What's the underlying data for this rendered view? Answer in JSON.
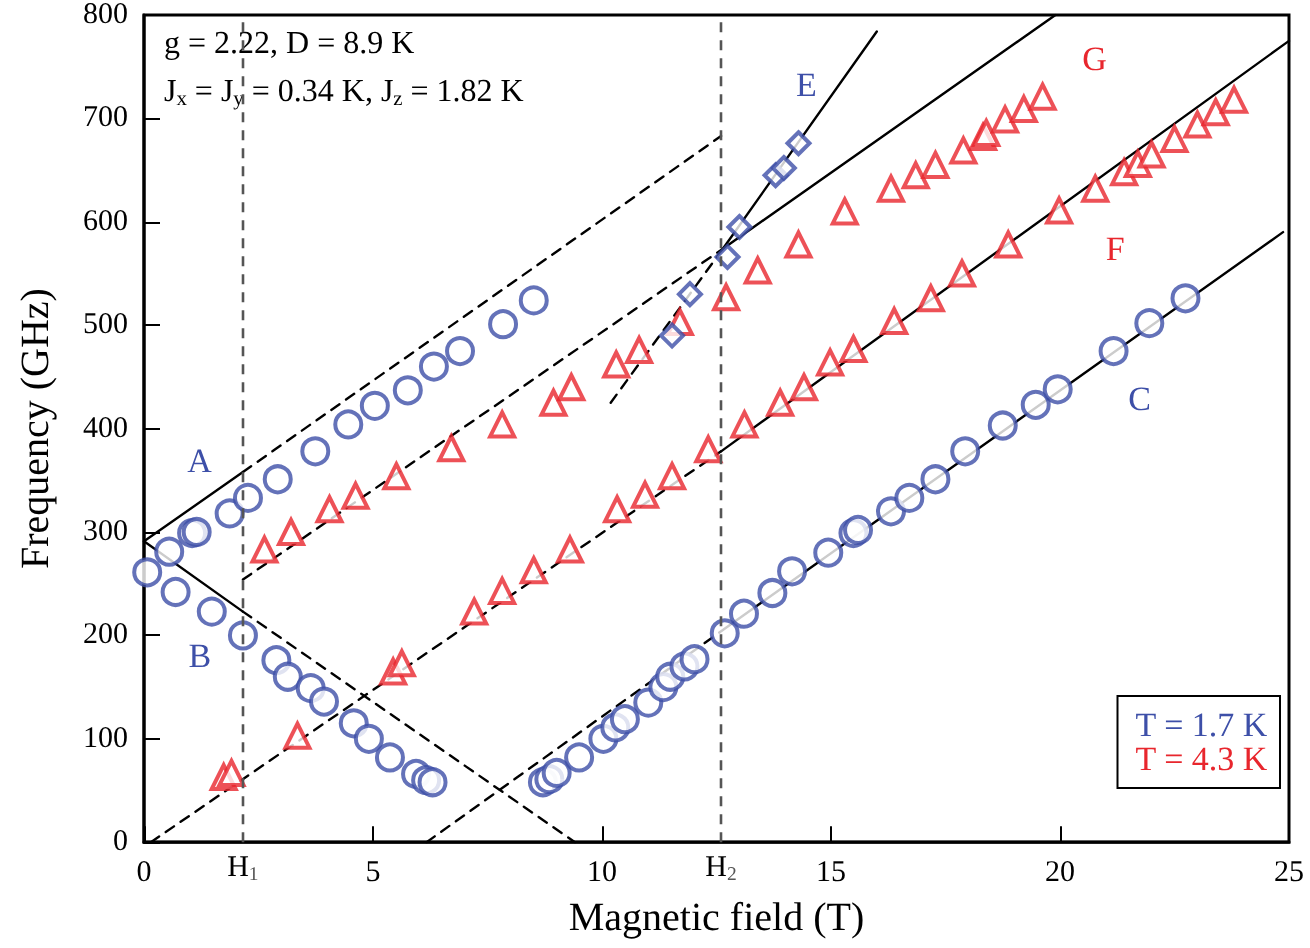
{
  "chart_data": {
    "type": "scatter",
    "xlabel": "Magnetic field (T)",
    "ylabel": "Frequency (GHz)",
    "xlim": [
      0,
      25
    ],
    "xticks": [
      0,
      5,
      10,
      15,
      20,
      25
    ],
    "ylim": [
      0,
      800
    ],
    "yticks": [
      0,
      100,
      200,
      300,
      400,
      500,
      600,
      700,
      800
    ],
    "grid": false,
    "legend": "bottom right",
    "series": [
      {
        "type": "line",
        "color": "#000000",
        "line_style": "solid",
        "marker": "none",
        "x": [
          0,
          2.16
        ],
        "values": [
          291,
          358
        ]
      },
      {
        "type": "line",
        "color": "#000000",
        "line_style": "dashed",
        "marker": "none",
        "x": [
          2.16,
          12.6
        ],
        "values": [
          358,
          683
        ]
      },
      {
        "type": "line",
        "color": "#000000",
        "line_style": "solid",
        "marker": "none",
        "x": [
          0,
          2.16
        ],
        "values": [
          291,
          223
        ]
      },
      {
        "type": "line",
        "color": "#000000",
        "line_style": "dashed",
        "marker": "none",
        "x": [
          2.16,
          9.41
        ],
        "values": [
          223,
          0
        ]
      },
      {
        "type": "line",
        "color": "#000000",
        "line_style": "dashed",
        "marker": "none",
        "x": [
          2.16,
          12.64
        ],
        "values": [
          254,
          574
        ]
      },
      {
        "type": "line",
        "color": "#000000",
        "line_style": "solid",
        "marker": "none",
        "x": [
          12.64,
          19.9
        ],
        "values": [
          574,
          800
        ]
      },
      {
        "type": "line",
        "color": "#000000",
        "line_style": "dashed",
        "marker": "none",
        "x": [
          10.19,
          12.64
        ],
        "values": [
          425,
          574
        ]
      },
      {
        "type": "line",
        "color": "#000000",
        "line_style": "solid",
        "marker": "none",
        "x": [
          12.64,
          16.0
        ],
        "values": [
          574,
          784
        ]
      },
      {
        "type": "line",
        "color": "#000000",
        "line_style": "dashed",
        "marker": "none",
        "x": [
          0.15,
          12.6
        ],
        "values": [
          0,
          378
        ]
      },
      {
        "type": "line",
        "color": "#000000",
        "line_style": "solid",
        "marker": "none",
        "x": [
          12.6,
          25
        ],
        "values": [
          378,
          775
        ]
      },
      {
        "type": "line",
        "color": "#000000",
        "line_style": "dashed",
        "marker": "none",
        "x": [
          6.17,
          12.57
        ],
        "values": [
          0,
          203
        ]
      },
      {
        "type": "line",
        "color": "#000000",
        "line_style": "solid",
        "marker": "none",
        "x": [
          12.57,
          24.87
        ],
        "values": [
          203,
          590
        ]
      },
      {
        "name": "T = 1.7 K",
        "color": "#3d4fa8",
        "marker": "circle",
        "x": [
          0.07,
          0.69,
          1.48,
          2.16,
          2.89,
          3.14,
          3.64,
          3.93,
          4.58,
          4.91,
          5.37,
          5.94,
          6.16,
          6.3,
          0.55,
          1.05,
          1.15,
          1.87,
          2.27,
          2.92,
          3.74,
          4.46,
          5.04,
          5.76,
          6.33,
          6.9,
          7.84,
          8.51,
          8.71,
          8.85,
          9.01,
          9.5,
          10.03,
          10.29,
          10.5,
          11.01,
          11.34,
          11.49,
          11.8,
          12.02,
          12.68,
          13.1,
          13.72,
          14.15,
          14.94,
          15.49,
          15.59,
          16.31,
          16.71,
          17.28,
          17.93,
          18.75,
          19.47,
          19.95,
          21.17,
          21.95,
          22.74
        ],
        "values": [
          261,
          242,
          223,
          200,
          176,
          160,
          149,
          136,
          115,
          100,
          82,
          66,
          60,
          58,
          281,
          299,
          300,
          318,
          333,
          351,
          378,
          404,
          422,
          437,
          460,
          475,
          501,
          524,
          58,
          61,
          67,
          82,
          100,
          111,
          119,
          135,
          150,
          160,
          170,
          177,
          202,
          221,
          241,
          262,
          280,
          299,
          302,
          320,
          333,
          351,
          378,
          403,
          423,
          438,
          475,
          502,
          526
        ]
      },
      {
        "name": "T = 4.3 K",
        "color": "#e8262d",
        "marker": "triangle",
        "x": [
          1.74,
          1.91,
          3.35,
          5.44,
          5.63,
          7.21,
          7.82,
          8.51,
          9.3,
          10.33,
          10.94,
          11.53,
          12.32,
          13.11,
          13.89,
          14.41,
          14.98,
          15.49,
          16.38,
          17.18,
          17.86,
          18.87,
          19.98,
          20.77,
          21.4,
          21.7,
          22.0,
          22.5,
          23.0,
          23.4,
          23.8,
          2.63,
          3.21,
          4.05,
          4.62,
          5.51,
          6.71,
          7.82,
          8.94,
          9.33,
          10.31,
          10.81,
          11.7,
          12.71,
          13.4,
          14.29,
          15.3,
          16.31,
          16.85,
          17.28,
          17.89,
          18.32,
          18.39,
          18.8,
          19.21,
          19.62
        ],
        "values": [
          63,
          67,
          103,
          165,
          173,
          223,
          243,
          263,
          283,
          322,
          336,
          354,
          380,
          404,
          425,
          440,
          464,
          477,
          504,
          526,
          550,
          578,
          611,
          632,
          648,
          656,
          665,
          680,
          694,
          706,
          718,
          283,
          300,
          322,
          335,
          354,
          381,
          404,
          425,
          440,
          462,
          476,
          503,
          527,
          553,
          578,
          610,
          632,
          645,
          655,
          669,
          682,
          686,
          699,
          709,
          721
        ]
      },
      {
        "color": "#3d4fa8",
        "marker": "diamond",
        "x": [
          11.53,
          11.92,
          12.74,
          13.0,
          13.79,
          13.97,
          14.29
        ],
        "values": [
          490,
          530,
          566,
          595,
          645,
          652,
          676
        ]
      }
    ],
    "ref_lines": [
      {
        "axis": "x",
        "value": 2.16,
        "label": "H$_{1}$",
        "color": "#555555",
        "line_style": "dashed"
      },
      {
        "axis": "x",
        "value": 12.6,
        "label": "H$_{2}$",
        "color": "#555555",
        "line_style": "dashed"
      }
    ],
    "annotations": [
      "g = 2.22, D = 8.9 K",
      "J$_{x}$ = J$_{y}$ = 0.34 K, J$_{z}$ = 1.82 K",
      {
        "text": "A",
        "x": 1.87,
        "y": 318
      },
      {
        "text": "B",
        "x": 1.48,
        "y": 223
      },
      {
        "text": "C",
        "x": 21.17,
        "y": 475
      },
      {
        "text": "E",
        "x": 14.29,
        "y": 676
      },
      {
        "text": "F",
        "x": 20.77,
        "y": 632
      },
      {
        "text": "G",
        "x": 19.62,
        "y": 721
      }
    ]
  }
}
